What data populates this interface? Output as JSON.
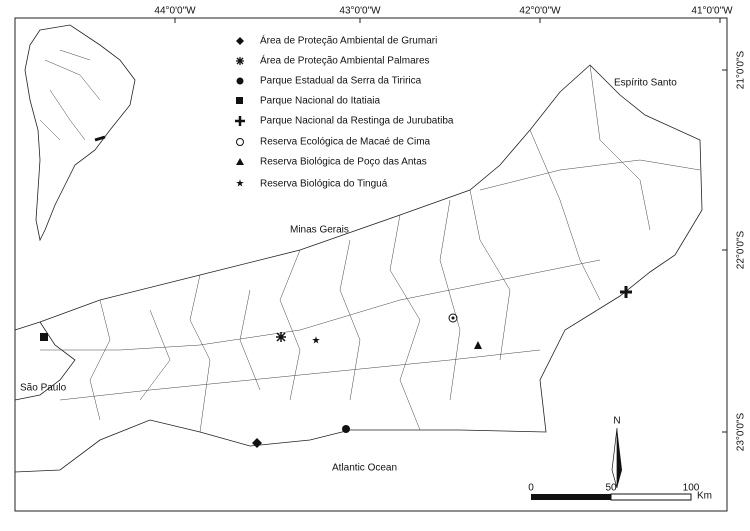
{
  "grid": {
    "longitudes": [
      "44°0'0\"W",
      "43°0'0\"W",
      "42°0'0\"W",
      "41°0'0\"W"
    ],
    "latitudes": [
      "21°0'0\"S",
      "22°0'0\"S",
      "23°0'0\"S"
    ]
  },
  "legend": [
    "Área de Proteção Ambiental de Grumari",
    "Área de Proteção Ambiental Palmares",
    "Parque Estadual da Serra da Tiririca",
    "Parque Nacional do Itatiaia",
    "Parque Nacional da Restinga de Jurubatiba",
    "Reserva Ecológica de Macaé de Cima",
    "Reserva Biológica de Poço das Antas",
    "Reserva Biológica do Tinguá"
  ],
  "regions": [
    "Espírito Santo",
    "Minas Gerais",
    "São Paulo",
    "Atlantic Ocean"
  ],
  "scale": {
    "ticks": [
      0,
      50,
      100
    ],
    "unit": "Km"
  },
  "north": "N"
}
